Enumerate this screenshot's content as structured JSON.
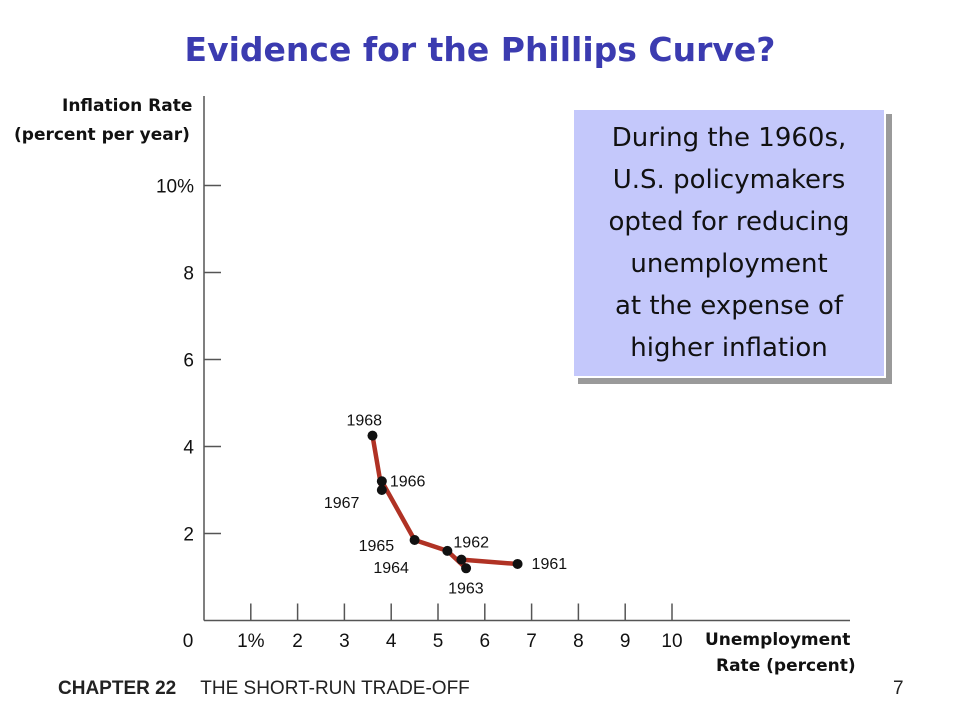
{
  "page": {
    "title": "Evidence for the Phillips Curve?",
    "footer_chapter": "CHAPTER 22",
    "footer_title": "THE SHORT-RUN TRADE-OFF",
    "page_number": "7"
  },
  "annotation": {
    "lines": [
      "During the 1960s,",
      "U.S. policymakers",
      "opted for reducing",
      "unemployment",
      "at the expense of",
      "higher inflation"
    ]
  },
  "chart_data": {
    "type": "line",
    "ylabel_line1": "Inflation Rate",
    "ylabel_line2": "(percent per year)",
    "xlabel_line1": "Unemployment",
    "xlabel_line2": "Rate (percent)",
    "xlim": [
      0,
      10
    ],
    "ylim": [
      0,
      10
    ],
    "x_ticks": [
      "0",
      "1%",
      "2",
      "3",
      "4",
      "5",
      "6",
      "7",
      "8",
      "9",
      "10"
    ],
    "y_ticks": [
      "2",
      "4",
      "6",
      "8",
      "10%"
    ],
    "line_color": "#b03224",
    "points": [
      {
        "year": "1961",
        "x": 6.7,
        "y": 1.3
      },
      {
        "year": "1962",
        "x": 5.5,
        "y": 1.4
      },
      {
        "year": "1963",
        "x": 5.6,
        "y": 1.2
      },
      {
        "year": "1964",
        "x": 5.2,
        "y": 1.6
      },
      {
        "year": "1965",
        "x": 4.5,
        "y": 1.85
      },
      {
        "year": "1966",
        "x": 3.8,
        "y": 3.2
      },
      {
        "year": "1967",
        "x": 3.8,
        "y": 3.0
      },
      {
        "year": "1968",
        "x": 3.6,
        "y": 4.25
      }
    ]
  }
}
